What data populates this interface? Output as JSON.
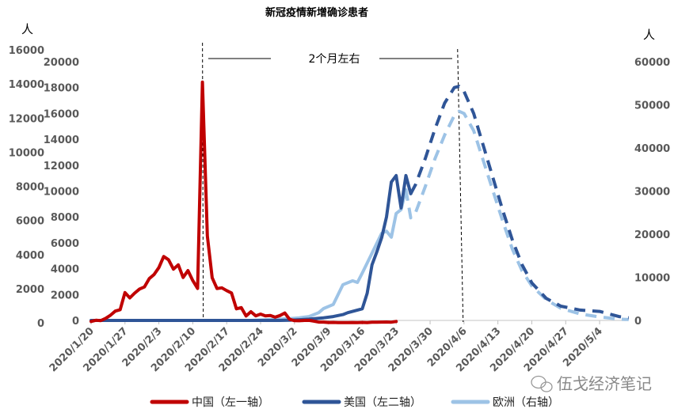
{
  "chart_data": {
    "type": "line",
    "title": "新冠疫情新增确诊患者",
    "y_unit_left": "人",
    "y_unit_right": "人",
    "annotation": "2个月左右",
    "axes": {
      "left1": {
        "range": [
          0,
          16000
        ],
        "ticks": [
          0,
          2000,
          4000,
          6000,
          8000,
          10000,
          12000,
          14000,
          16000
        ]
      },
      "left2": {
        "range": [
          0,
          20000
        ],
        "ticks": [
          0,
          2000,
          4000,
          6000,
          8000,
          10000,
          12000,
          14000,
          16000,
          18000,
          20000
        ]
      },
      "right": {
        "range": [
          0,
          60000
        ],
        "ticks": [
          0,
          10000,
          20000,
          30000,
          40000,
          50000,
          60000
        ]
      }
    },
    "x_ticks": [
      "2020/1/20",
      "2020/1/27",
      "2020/2/3",
      "2020/2/10",
      "2020/2/17",
      "2020/2/24",
      "2020/3/2",
      "2020/3/9",
      "2020/3/16",
      "2020/3/23",
      "2020/3/30",
      "2020/4/6",
      "2020/4/13",
      "2020/4/20",
      "2020/4/27",
      "2020/5/4"
    ],
    "vertical_markers": [
      "2020/2/12",
      "2020/4/5"
    ],
    "grid": false,
    "legend_position": "bottom",
    "series": [
      {
        "name": "中国（左一轴）",
        "axis": "left1",
        "color": "#C00000",
        "style": "solid",
        "points": [
          [
            "2020/1/20",
            77
          ],
          [
            "2020/1/21",
            149
          ],
          [
            "2020/1/22",
            131
          ],
          [
            "2020/1/23",
            259
          ],
          [
            "2020/1/24",
            444
          ],
          [
            "2020/1/25",
            688
          ],
          [
            "2020/1/26",
            769
          ],
          [
            "2020/1/27",
            1771
          ],
          [
            "2020/1/28",
            1459
          ],
          [
            "2020/1/29",
            1737
          ],
          [
            "2020/1/30",
            1982
          ],
          [
            "2020/1/31",
            2102
          ],
          [
            "2020/2/1",
            2590
          ],
          [
            "2020/2/2",
            2829
          ],
          [
            "2020/2/3",
            3235
          ],
          [
            "2020/2/4",
            3887
          ],
          [
            "2020/2/5",
            3694
          ],
          [
            "2020/2/6",
            3143
          ],
          [
            "2020/2/7",
            3399
          ],
          [
            "2020/2/8",
            2656
          ],
          [
            "2020/2/9",
            3062
          ],
          [
            "2020/2/10",
            2478
          ],
          [
            "2020/2/11",
            2015
          ],
          [
            "2020/2/12",
            14108
          ],
          [
            "2020/2/13",
            5090
          ],
          [
            "2020/2/14",
            2641
          ],
          [
            "2020/2/15",
            2009
          ],
          [
            "2020/2/16",
            2048
          ],
          [
            "2020/2/17",
            1886
          ],
          [
            "2020/2/18",
            1749
          ],
          [
            "2020/2/19",
            820
          ],
          [
            "2020/2/20",
            889
          ],
          [
            "2020/2/21",
            397
          ],
          [
            "2020/2/22",
            648
          ],
          [
            "2020/2/23",
            409
          ],
          [
            "2020/2/24",
            508
          ],
          [
            "2020/2/25",
            406
          ],
          [
            "2020/2/26",
            433
          ],
          [
            "2020/2/27",
            327
          ],
          [
            "2020/2/28",
            427
          ],
          [
            "2020/2/29",
            573
          ],
          [
            "2020/3/1",
            202
          ],
          [
            "2020/3/2",
            125
          ],
          [
            "2020/3/3",
            119
          ],
          [
            "2020/3/4",
            139
          ],
          [
            "2020/3/5",
            143
          ],
          [
            "2020/3/6",
            99
          ],
          [
            "2020/3/7",
            44
          ],
          [
            "2020/3/8",
            40
          ],
          [
            "2020/3/9",
            19
          ],
          [
            "2020/3/10",
            24
          ],
          [
            "2020/3/11",
            15
          ],
          [
            "2020/3/12",
            8
          ],
          [
            "2020/3/13",
            11
          ],
          [
            "2020/3/14",
            20
          ],
          [
            "2020/3/15",
            16
          ],
          [
            "2020/3/16",
            21
          ],
          [
            "2020/3/17",
            13
          ],
          [
            "2020/3/18",
            34
          ],
          [
            "2020/3/19",
            39
          ],
          [
            "2020/3/20",
            41
          ],
          [
            "2020/3/21",
            46
          ],
          [
            "2020/3/22",
            39
          ],
          [
            "2020/3/23",
            78
          ]
        ]
      },
      {
        "name": "美国（左二轴）",
        "axis": "left2",
        "color": "#2F5597",
        "style": "solid",
        "points": [
          [
            "2020/1/20",
            0
          ],
          [
            "2020/2/28",
            0
          ],
          [
            "2020/3/1",
            20
          ],
          [
            "2020/3/5",
            100
          ],
          [
            "2020/3/8",
            200
          ],
          [
            "2020/3/10",
            300
          ],
          [
            "2020/3/12",
            450
          ],
          [
            "2020/3/13",
            600
          ],
          [
            "2020/3/15",
            800
          ],
          [
            "2020/3/16",
            900
          ],
          [
            "2020/3/17",
            2100
          ],
          [
            "2020/3/18",
            4300
          ],
          [
            "2020/3/19",
            5300
          ],
          [
            "2020/3/20",
            6400
          ],
          [
            "2020/3/21",
            8000
          ],
          [
            "2020/3/22",
            10700
          ],
          [
            "2020/3/23",
            11200
          ],
          [
            "2020/3/24",
            8700
          ],
          [
            "2020/3/25",
            11200
          ],
          [
            "2020/3/26",
            9800
          ]
        ]
      },
      {
        "name": "美国（左二轴）预测",
        "axis": "left2",
        "color": "#2F5597",
        "style": "dashed",
        "points": [
          [
            "2020/3/26",
            9800
          ],
          [
            "2020/3/27",
            10500
          ],
          [
            "2020/3/29",
            12500
          ],
          [
            "2020/3/31",
            14800
          ],
          [
            "2020/4/2",
            16800
          ],
          [
            "2020/4/4",
            18000
          ],
          [
            "2020/4/5",
            18100
          ],
          [
            "2020/4/6",
            17700
          ],
          [
            "2020/4/8",
            16000
          ],
          [
            "2020/4/10",
            13500
          ],
          [
            "2020/4/12",
            11000
          ],
          [
            "2020/4/14",
            8500
          ],
          [
            "2020/4/16",
            6200
          ],
          [
            "2020/4/18",
            4300
          ],
          [
            "2020/4/20",
            2900
          ],
          [
            "2020/4/23",
            1700
          ],
          [
            "2020/4/26",
            1100
          ],
          [
            "2020/4/30",
            800
          ],
          [
            "2020/5/4",
            700
          ],
          [
            "2020/5/8",
            300
          ],
          [
            "2020/5/10",
            200
          ]
        ]
      },
      {
        "name": "欧洲（右轴）",
        "axis": "right",
        "color": "#9DC3E6",
        "style": "solid",
        "points": [
          [
            "2020/1/20",
            0
          ],
          [
            "2020/2/22",
            0
          ],
          [
            "2020/2/26",
            200
          ],
          [
            "2020/3/1",
            400
          ],
          [
            "2020/3/3",
            600
          ],
          [
            "2020/3/5",
            900
          ],
          [
            "2020/3/7",
            1800
          ],
          [
            "2020/3/8",
            2750
          ],
          [
            "2020/3/10",
            3700
          ],
          [
            "2020/3/11",
            6000
          ],
          [
            "2020/3/12",
            8300
          ],
          [
            "2020/3/14",
            9200
          ],
          [
            "2020/3/15",
            8800
          ],
          [
            "2020/3/16",
            11000
          ],
          [
            "2020/3/18",
            15600
          ],
          [
            "2020/3/20",
            20200
          ],
          [
            "2020/3/21",
            20700
          ],
          [
            "2020/3/22",
            19300
          ],
          [
            "2020/3/23",
            24800
          ],
          [
            "2020/3/24",
            25700
          ],
          [
            "2020/3/25",
            30300
          ]
        ]
      },
      {
        "name": "欧洲（右轴）预测",
        "axis": "right",
        "color": "#9DC3E6",
        "style": "dashed",
        "points": [
          [
            "2020/3/25",
            30300
          ],
          [
            "2020/3/26",
            23800
          ],
          [
            "2020/3/27",
            25000
          ],
          [
            "2020/3/29",
            31000
          ],
          [
            "2020/3/31",
            37500
          ],
          [
            "2020/4/2",
            43000
          ],
          [
            "2020/4/4",
            47500
          ],
          [
            "2020/4/5",
            48500
          ],
          [
            "2020/4/6",
            48000
          ],
          [
            "2020/4/8",
            44000
          ],
          [
            "2020/4/10",
            37000
          ],
          [
            "2020/4/12",
            30000
          ],
          [
            "2020/4/14",
            23000
          ],
          [
            "2020/4/16",
            16500
          ],
          [
            "2020/4/18",
            11500
          ],
          [
            "2020/4/20",
            8000
          ],
          [
            "2020/4/23",
            4800
          ],
          [
            "2020/4/26",
            2800
          ],
          [
            "2020/4/30",
            1500
          ],
          [
            "2020/5/4",
            800
          ],
          [
            "2020/5/8",
            300
          ],
          [
            "2020/5/10",
            200
          ]
        ]
      }
    ],
    "legend": [
      {
        "label": "中国（左一轴）",
        "color": "#C00000"
      },
      {
        "label": "美国（左二轴）",
        "color": "#2F5597"
      },
      {
        "label": "欧洲（右轴）",
        "color": "#9DC3E6"
      }
    ]
  },
  "watermark": "伍戈经济笔记"
}
